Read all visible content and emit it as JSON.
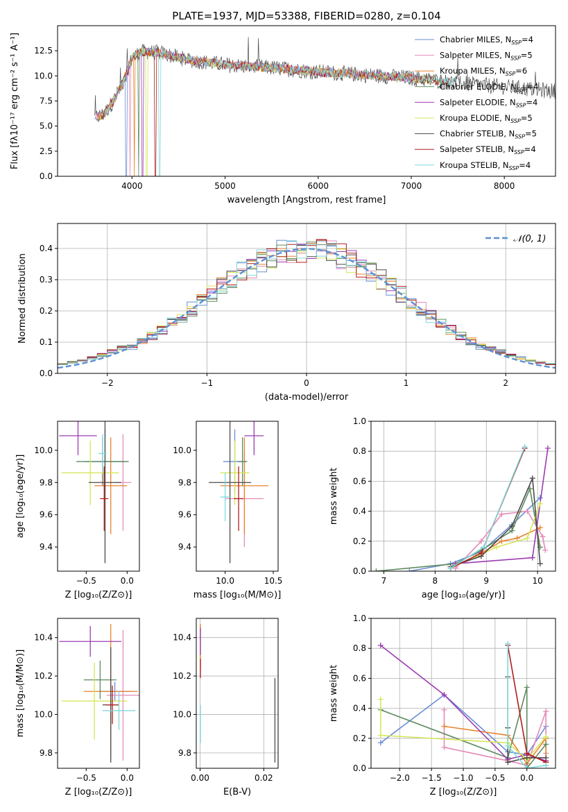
{
  "figure": {
    "title": "PLATE=1937, MJD=53388, FIBERID=0280, z=0.104"
  },
  "colors": {
    "Chabrier MILES": "#6a8ed6",
    "Salpeter MILES": "#e58ab8",
    "Kroupa MILES": "#e8812b",
    "Chabrier ELODIE": "#5c8a5c",
    "Salpeter ELODIE": "#9b3bb0",
    "Kroupa ELODIE": "#d6e65a",
    "Chabrier STELIB": "#4a4a4a",
    "Salpeter STELIB": "#b01c1c",
    "Kroupa STELIB": "#7fd8dc",
    "reference": "#5b8fd6"
  },
  "chart_data": [
    {
      "id": "spectrum",
      "type": "line",
      "xlabel": "wavelength [Angstrom, rest frame]",
      "ylabel": "Flux [fλ10⁻¹⁷ erg cm⁻² s⁻¹ A⁻¹]",
      "xlim": [
        3200,
        8550
      ],
      "ylim": [
        0,
        15
      ],
      "xticks": [
        "4000",
        "5000",
        "6000",
        "7000",
        "8000"
      ],
      "yticks": [
        "0.0",
        "2.5",
        "5.0",
        "7.5",
        "10.0",
        "12.5"
      ],
      "legend_position": "top-right",
      "series": [
        {
          "name": "Chabrier MILES, N",
          "sub": "SSP",
          "suffix": "=4"
        },
        {
          "name": "Salpeter MILES, N",
          "sub": "SSP",
          "suffix": "=5"
        },
        {
          "name": "Kroupa MILES, N",
          "sub": "SSP",
          "suffix": "=6"
        },
        {
          "name": "Chabrier ELODIE, N",
          "sub": "SSP",
          "suffix": "=4"
        },
        {
          "name": "Salpeter ELODIE, N",
          "sub": "SSP",
          "suffix": "=4"
        },
        {
          "name": "Kroupa ELODIE, N",
          "sub": "SSP",
          "suffix": "=5"
        },
        {
          "name": "Chabrier STELIB, N",
          "sub": "SSP",
          "suffix": "=5"
        },
        {
          "name": "Salpeter STELIB, N",
          "sub": "SSP",
          "suffix": "=4"
        },
        {
          "name": "Kroupa STELIB, N",
          "sub": "SSP",
          "suffix": "=4"
        }
      ],
      "continuum": {
        "x": [
          3600,
          3700,
          3800,
          3900,
          4000,
          4100,
          4300,
          4600,
          5000,
          5500,
          6000,
          6500,
          7000,
          7500,
          8000,
          8500
        ],
        "y": [
          5.8,
          6.2,
          7.5,
          9.3,
          11.8,
          12.4,
          12.3,
          11.6,
          11.1,
          10.8,
          10.4,
          10.1,
          9.8,
          9.3,
          8.9,
          8.5
        ]
      }
    },
    {
      "id": "residuals",
      "type": "bar",
      "xlabel": "(data-model)/error",
      "ylabel": "Normed distribution",
      "xlim": [
        -2.5,
        2.5
      ],
      "ylim": [
        0,
        0.48
      ],
      "xticks": [
        "−2",
        "−1",
        "0",
        "1",
        "2"
      ],
      "yticks": [
        "0.0",
        "0.1",
        "0.2",
        "0.3",
        "0.4"
      ],
      "legend": "𝒩(0, 1)",
      "legend_position": "top-right",
      "bin_width": 0.1
    },
    {
      "id": "age_vs_Z",
      "type": "scatter",
      "xlabel": "Z [log₁₀(Z/Z⊙)]",
      "ylabel": "age  [log₁₀(age/yr)]",
      "xlim": [
        -0.85,
        0.15
      ],
      "ylim": [
        9.25,
        10.18
      ],
      "xticks": [
        {
          "v": -0.5,
          "t": "−0.5"
        },
        {
          "v": 0,
          "t": "0.0"
        }
      ],
      "yticks": [
        {
          "v": 9.4,
          "t": "9.4"
        },
        {
          "v": 9.6,
          "t": "9.6"
        },
        {
          "v": 9.8,
          "t": "9.8"
        },
        {
          "v": 10.0,
          "t": "10.0"
        }
      ],
      "grid": false,
      "points": [
        {
          "s": "Chabrier MILES",
          "x": -0.27,
          "y": 9.93,
          "xerr": 0.25,
          "yerr": 0.2
        },
        {
          "s": "Salpeter MILES",
          "x": -0.05,
          "y": 9.8,
          "xerr": 0.1,
          "yerr": 0.3
        },
        {
          "s": "Kroupa MILES",
          "x": -0.2,
          "y": 9.78,
          "xerr": 0.2,
          "yerr": 0.3
        },
        {
          "s": "Chabrier ELODIE",
          "x": -0.3,
          "y": 9.93,
          "xerr": 0.32,
          "yerr": 0.15
        },
        {
          "s": "Salpeter ELODIE",
          "x": -0.6,
          "y": 10.09,
          "xerr": 0.23,
          "yerr": 0.12
        },
        {
          "s": "Kroupa ELODIE",
          "x": -0.45,
          "y": 9.86,
          "xerr": 0.35,
          "yerr": 0.2
        },
        {
          "s": "Chabrier STELIB",
          "x": -0.27,
          "y": 9.8,
          "xerr": 0.2,
          "yerr": 0.5
        },
        {
          "s": "Salpeter STELIB",
          "x": -0.28,
          "y": 9.7,
          "xerr": 0.05,
          "yerr": 0.2
        },
        {
          "s": "Kroupa STELIB",
          "x": -0.3,
          "y": 9.98,
          "xerr": 0.05,
          "yerr": 0.12
        }
      ]
    },
    {
      "id": "age_vs_mass",
      "type": "scatter",
      "xlabel": "mass [log₁₀(M/M⊙)]",
      "ylabel": "",
      "xlim": [
        9.7,
        10.55
      ],
      "ylim": [
        9.25,
        10.18
      ],
      "xticks": [
        {
          "v": 10.0,
          "t": "10.0"
        },
        {
          "v": 10.5,
          "t": "10.5"
        }
      ],
      "yticks": [
        {
          "v": 9.4,
          "t": "9.4"
        },
        {
          "v": 9.6,
          "t": "9.6"
        },
        {
          "v": 9.8,
          "t": "9.8"
        },
        {
          "v": 10.0,
          "t": "10.0"
        }
      ],
      "grid": false,
      "points": [
        {
          "s": "Chabrier MILES",
          "x": 10.1,
          "y": 9.93,
          "xerr": 0.12,
          "yerr": 0.2
        },
        {
          "s": "Salpeter MILES",
          "x": 10.2,
          "y": 9.7,
          "xerr": 0.2,
          "yerr": 0.3
        },
        {
          "s": "Kroupa MILES",
          "x": 10.2,
          "y": 9.78,
          "xerr": 0.25,
          "yerr": 0.3
        },
        {
          "s": "Chabrier ELODIE",
          "x": 10.18,
          "y": 9.93,
          "xerr": 0.05,
          "yerr": 0.15
        },
        {
          "s": "Salpeter ELODIE",
          "x": 10.3,
          "y": 10.09,
          "xerr": 0.1,
          "yerr": 0.12
        },
        {
          "s": "Kroupa ELODIE",
          "x": 10.1,
          "y": 9.86,
          "xerr": 0.15,
          "yerr": 0.2
        },
        {
          "s": "Chabrier STELIB",
          "x": 10.05,
          "y": 9.8,
          "xerr": 0.22,
          "yerr": 0.5
        },
        {
          "s": "Salpeter STELIB",
          "x": 10.14,
          "y": 9.7,
          "xerr": 0.05,
          "yerr": 0.2
        },
        {
          "s": "Kroupa STELIB",
          "x": 10.0,
          "y": 9.71,
          "xerr": 0.05,
          "yerr": 0.15
        }
      ]
    },
    {
      "id": "weight_vs_age",
      "type": "line",
      "xlabel": "age  [log₁₀(age/yr)]",
      "ylabel": "mass weight",
      "xlim": [
        6.75,
        10.35
      ],
      "ylim": [
        0,
        1
      ],
      "xticks": [
        {
          "v": 7,
          "t": "7"
        },
        {
          "v": 8,
          "t": "8"
        },
        {
          "v": 9,
          "t": "9"
        },
        {
          "v": 10,
          "t": "10"
        }
      ],
      "yticks": [
        {
          "v": 0,
          "t": "0.0"
        },
        {
          "v": 0.2,
          "t": "0.2"
        },
        {
          "v": 0.4,
          "t": "0.4"
        },
        {
          "v": 0.6,
          "t": "0.6"
        },
        {
          "v": 0.8,
          "t": "0.8"
        },
        {
          "v": 1,
          "t": "1.0"
        }
      ],
      "grid": true,
      "series": [
        {
          "s": "Chabrier MILES",
          "x": [
            7.5,
            8.3,
            8.9,
            9.5,
            10.05
          ],
          "y": [
            0.0,
            0.05,
            0.13,
            0.31,
            0.49
          ]
        },
        {
          "s": "Salpeter MILES",
          "x": [
            8.4,
            8.9,
            9.3,
            9.8,
            10.1,
            10.15
          ],
          "y": [
            0.02,
            0.2,
            0.38,
            0.4,
            0.23,
            0.14
          ]
        },
        {
          "s": "Kroupa MILES",
          "x": [
            8.3,
            8.8,
            9.3,
            9.6,
            10.05
          ],
          "y": [
            0.02,
            0.1,
            0.2,
            0.22,
            0.29
          ]
        },
        {
          "s": "Chabrier ELODIE",
          "x": [
            6.85,
            8.4,
            8.9,
            9.5,
            9.85,
            10.05
          ],
          "y": [
            0.0,
            0.05,
            0.14,
            0.27,
            0.55,
            0.16
          ]
        },
        {
          "s": "Salpeter ELODIE",
          "x": [
            8.4,
            9.9,
            10.2
          ],
          "y": [
            0.05,
            0.09,
            0.82
          ]
        },
        {
          "s": "Kroupa ELODIE",
          "x": [
            8.3,
            9.2,
            9.8,
            10.05
          ],
          "y": [
            0.02,
            0.16,
            0.22,
            0.45
          ]
        },
        {
          "s": "Chabrier STELIB",
          "x": [
            8.3,
            8.9,
            9.5,
            9.9,
            10.05
          ],
          "y": [
            0.03,
            0.1,
            0.3,
            0.62,
            0.05
          ]
        },
        {
          "s": "Salpeter STELIB",
          "x": [
            8.3,
            8.9,
            9.75
          ],
          "y": [
            0.02,
            0.12,
            0.82
          ]
        },
        {
          "s": "Kroupa STELIB",
          "x": [
            8.3,
            8.95,
            9.75
          ],
          "y": [
            0.02,
            0.16,
            0.83
          ]
        }
      ]
    },
    {
      "id": "mass_vs_Z",
      "type": "scatter",
      "xlabel": "Z [log₁₀(Z/Z⊙)]",
      "ylabel": "mass [log₁₀(M/M⊙)]",
      "xlim": [
        -0.85,
        0.15
      ],
      "ylim": [
        9.72,
        10.5
      ],
      "xticks": [
        {
          "v": -0.5,
          "t": "−0.5"
        },
        {
          "v": 0,
          "t": "0.0"
        }
      ],
      "yticks": [
        {
          "v": 9.8,
          "t": "9.8"
        },
        {
          "v": 10.0,
          "t": "10.0"
        },
        {
          "v": 10.2,
          "t": "10.2"
        },
        {
          "v": 10.4,
          "t": "10.4"
        }
      ],
      "grid": false,
      "points": [
        {
          "s": "Chabrier MILES",
          "x": -0.15,
          "y": 10.12,
          "xerr": 0.2,
          "yerr": 0.05
        },
        {
          "s": "Salpeter MILES",
          "x": -0.05,
          "y": 10.1,
          "xerr": 0.2,
          "yerr": 0.34
        },
        {
          "s": "Kroupa MILES",
          "x": -0.2,
          "y": 10.12,
          "xerr": 0.33,
          "yerr": 0.35
        },
        {
          "s": "Chabrier ELODIE",
          "x": -0.33,
          "y": 10.18,
          "xerr": 0.2,
          "yerr": 0.1
        },
        {
          "s": "Salpeter ELODIE",
          "x": -0.45,
          "y": 10.38,
          "xerr": 0.38,
          "yerr": 0.08
        },
        {
          "s": "Kroupa ELODIE",
          "x": -0.4,
          "y": 10.07,
          "xerr": 0.4,
          "yerr": 0.2
        },
        {
          "s": "Chabrier STELIB",
          "x": -0.2,
          "y": 10.05,
          "xerr": 0.1,
          "yerr": 0.3
        },
        {
          "s": "Salpeter STELIB",
          "x": -0.18,
          "y": 10.05,
          "xerr": 0.08,
          "yerr": 0.1
        },
        {
          "s": "Kroupa STELIB",
          "x": -0.1,
          "y": 10.02,
          "xerr": 0.2,
          "yerr": 0.1
        }
      ]
    },
    {
      "id": "mass_vs_ebv",
      "type": "scatter",
      "xlabel": "E(B-V)",
      "ylabel": "",
      "xlim": [
        -0.0012,
        0.0245
      ],
      "ylim": [
        9.72,
        10.5
      ],
      "xticks": [
        {
          "v": 0,
          "t": "0.00"
        },
        {
          "v": 0.02,
          "t": "0.02"
        }
      ],
      "yticks": [
        {
          "v": 9.8,
          "t": "9.8"
        },
        {
          "v": 10.0,
          "t": "10.0"
        },
        {
          "v": 10.2,
          "t": "10.2"
        },
        {
          "v": 10.4,
          "t": "10.4"
        }
      ],
      "grid": true,
      "points": [
        {
          "s": "Kroupa MILES",
          "x": 0.0001,
          "y": 10.35,
          "xerr": 0,
          "yerr": 0.12
        },
        {
          "s": "Salpeter ELODIE",
          "x": 0.0001,
          "y": 10.38,
          "xerr": 0,
          "yerr": 0.07
        },
        {
          "s": "Salpeter STELIB",
          "x": 0.0001,
          "y": 10.24,
          "xerr": 0,
          "yerr": 0.05
        },
        {
          "s": "Kroupa STELIB",
          "x": 0.0001,
          "y": 9.95,
          "xerr": 0,
          "yerr": 0.1
        },
        {
          "s": "Chabrier STELIB",
          "x": 0.0235,
          "y": 9.97,
          "xerr": 0,
          "yerr": 0.22
        }
      ]
    },
    {
      "id": "weight_vs_Z",
      "type": "line",
      "xlabel": "Z [log₁₀(Z/Z⊙)]",
      "ylabel": "mass weight",
      "xlim": [
        -2.45,
        0.45
      ],
      "ylim": [
        0,
        1
      ],
      "xticks": [
        {
          "v": -2,
          "t": "−2.0"
        },
        {
          "v": -1.5,
          "t": "−1.5"
        },
        {
          "v": -1,
          "t": "−1.0"
        },
        {
          "v": -0.5,
          "t": "−0.5"
        },
        {
          "v": 0,
          "t": "0.0"
        }
      ],
      "yticks": [
        {
          "v": 0,
          "t": "0.0"
        },
        {
          "v": 0.2,
          "t": "0.2"
        },
        {
          "v": 0.4,
          "t": "0.4"
        },
        {
          "v": 0.6,
          "t": "0.6"
        },
        {
          "v": 0.8,
          "t": "0.8"
        },
        {
          "v": 1,
          "t": "1.0"
        }
      ],
      "grid": true,
      "series": [
        {
          "s": "Chabrier MILES",
          "x": [
            -2.3,
            -1.3,
            -0.3,
            0.0,
            0.3
          ],
          "y": [
            0.17,
            0.49,
            0.11,
            0.09,
            0.28
          ]
        },
        {
          "s": "Salpeter MILES",
          "x": [
            -1.3,
            -1.3,
            -0.3,
            0.0,
            0.3,
            0.3
          ],
          "y": [
            0.39,
            0.14,
            0.05,
            0.02,
            0.38,
            0.1
          ]
        },
        {
          "s": "Kroupa MILES",
          "x": [
            -1.3,
            -0.3,
            0.0,
            0.3,
            0.3
          ],
          "y": [
            0.28,
            0.22,
            0.03,
            0.2,
            0.04
          ]
        },
        {
          "s": "Chabrier ELODIE",
          "x": [
            -2.3,
            -0.3,
            0.0,
            0.0,
            0.3
          ],
          "y": [
            0.39,
            0.07,
            0.54,
            0.0,
            0.16
          ]
        },
        {
          "s": "Salpeter ELODIE",
          "x": [
            -2.3,
            -1.3,
            -0.3,
            0.0,
            0.3
          ],
          "y": [
            0.82,
            0.49,
            0.06,
            0.09,
            0.05
          ]
        },
        {
          "s": "Kroupa ELODIE",
          "x": [
            -2.3,
            -2.3,
            -0.3,
            0.0,
            0.3
          ],
          "y": [
            0.46,
            0.22,
            0.17,
            0.06,
            0.21
          ]
        },
        {
          "s": "Chabrier STELIB",
          "x": [
            -0.3,
            -0.3,
            -0.3,
            0.0,
            0.3
          ],
          "y": [
            0.61,
            0.27,
            0.04,
            0.07,
            0.07
          ]
        },
        {
          "s": "Salpeter STELIB",
          "x": [
            -0.3,
            0.0,
            0.3
          ],
          "y": [
            0.82,
            0.1,
            0.04
          ]
        },
        {
          "s": "Kroupa STELIB",
          "x": [
            -0.3,
            -0.3,
            0.0,
            0.3
          ],
          "y": [
            0.83,
            0.15,
            0.0,
            0.02
          ]
        }
      ]
    }
  ]
}
